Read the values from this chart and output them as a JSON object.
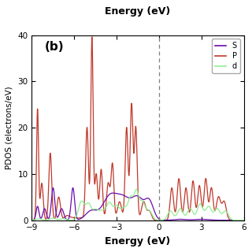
{
  "title_top": "Energy (eV)",
  "xlabel": "Energy (eV)",
  "ylabel": "PDOS (electrons/eV)",
  "label_b": "(b)",
  "xlim": [
    -9,
    6
  ],
  "ylim": [
    0,
    40
  ],
  "xticks": [
    -9,
    -6,
    -3,
    0,
    3,
    6
  ],
  "yticks": [
    0,
    10,
    20,
    30,
    40
  ],
  "vline_x": 0,
  "legend_labels": [
    "S",
    "P",
    "d"
  ],
  "color_s": "#6a0dad",
  "color_p": "#c0392b",
  "color_d": "#90ee90",
  "background_color": "#ffffff"
}
